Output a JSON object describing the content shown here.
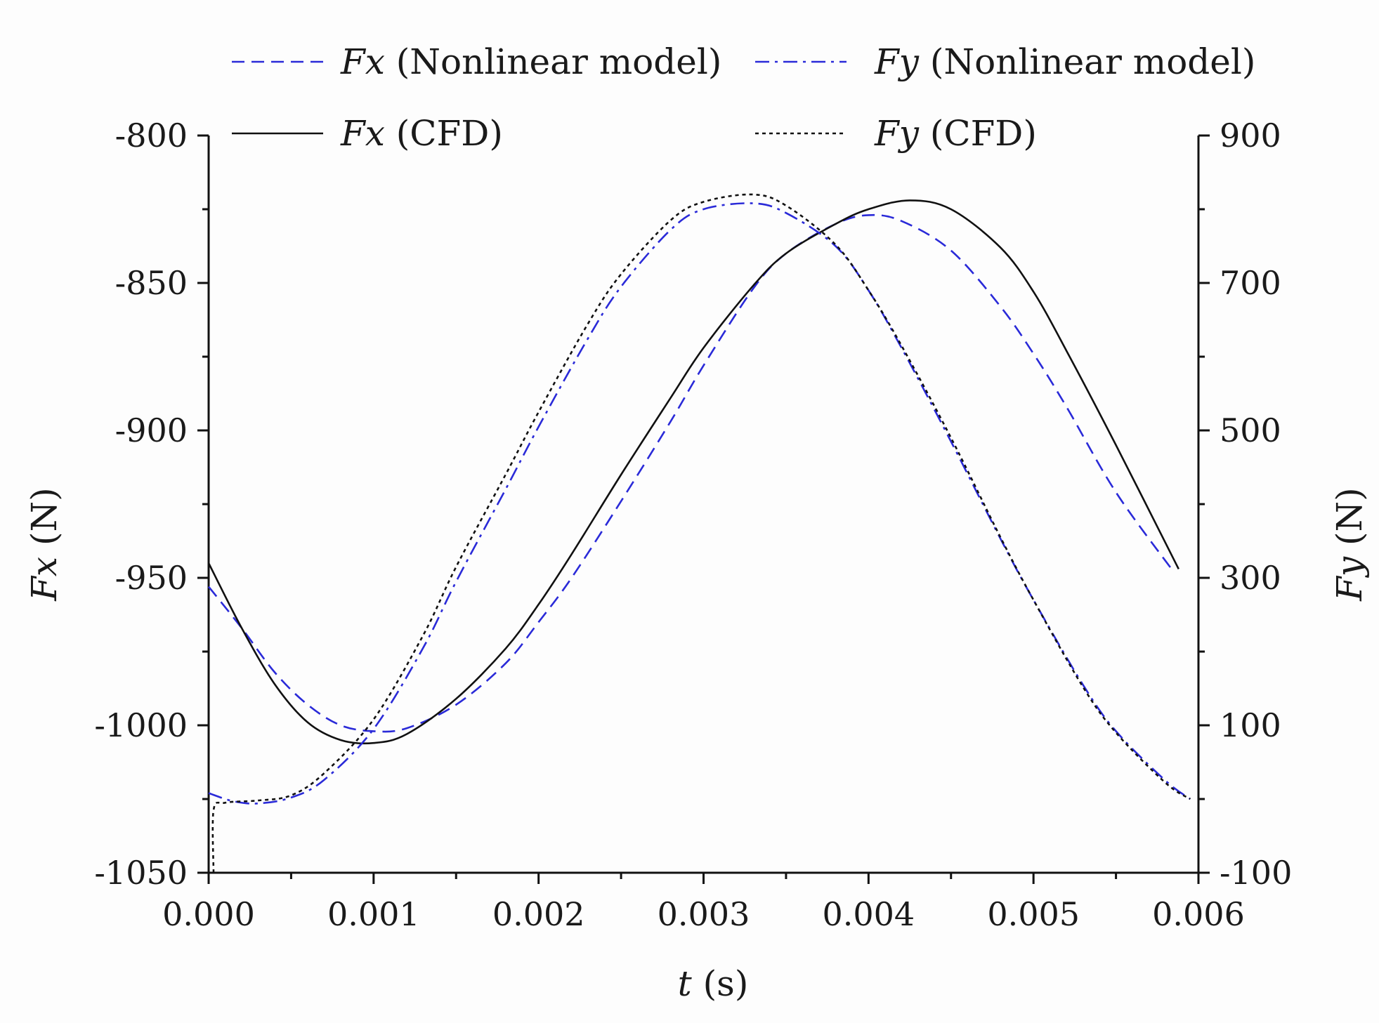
{
  "chart_data": {
    "type": "line",
    "x_axis": {
      "label_var": "t",
      "label_unit": "(s)",
      "range": [
        0,
        0.006
      ],
      "ticks": [
        "0.000",
        "0.001",
        "0.002",
        "0.003",
        "0.004",
        "0.005",
        "0.006"
      ],
      "tick_values": [
        0,
        0.001,
        0.002,
        0.003,
        0.004,
        0.005,
        0.006
      ]
    },
    "y_left": {
      "label_var": "Fx",
      "label_unit": "(N)",
      "range": [
        -1050,
        -800
      ],
      "ticks": [
        "-800",
        "-850",
        "-900",
        "-950",
        "-1000",
        "-1050"
      ],
      "tick_values": [
        -800,
        -850,
        -900,
        -950,
        -1000,
        -1050
      ]
    },
    "y_right": {
      "label_var": "Fy",
      "label_unit": "(N)",
      "range": [
        -100,
        900
      ],
      "ticks": [
        "900",
        "700",
        "500",
        "300",
        "100",
        "-100"
      ],
      "tick_values": [
        900,
        700,
        500,
        300,
        100,
        -100
      ]
    },
    "legend": {
      "position": "top",
      "entries": [
        {
          "var": "Fx",
          "desc": "(Nonlinear model)",
          "series": "fx_model"
        },
        {
          "var": "Fy",
          "desc": "(Nonlinear model)",
          "series": "fy_model"
        },
        {
          "var": "Fx",
          "desc": "(CFD)",
          "series": "fx_cfd"
        },
        {
          "var": "Fy",
          "desc": "(CFD)",
          "series": "fy_cfd"
        }
      ]
    },
    "series": [
      {
        "id": "fx_model",
        "name": "Fx (Nonlinear model)",
        "axis": "left",
        "color": "#2a2ad8",
        "style": "dashed",
        "x": [
          0,
          0.0002,
          0.0004,
          0.0006,
          0.0008,
          0.001,
          0.0012,
          0.0015,
          0.0018,
          0.002,
          0.0022,
          0.0025,
          0.0028,
          0.003,
          0.0033,
          0.0035,
          0.0038,
          0.004,
          0.0042,
          0.0045,
          0.0048,
          0.005,
          0.0052,
          0.0055,
          0.00585
        ],
        "values": [
          -953,
          -967,
          -982,
          -993,
          -1000,
          -1002,
          -1001,
          -993,
          -979,
          -965,
          -950,
          -924,
          -897,
          -878,
          -852,
          -840,
          -830,
          -827,
          -829,
          -839,
          -858,
          -874,
          -892,
          -921,
          -948
        ]
      },
      {
        "id": "fx_cfd",
        "name": "Fx (CFD)",
        "axis": "left",
        "color": "#111111",
        "style": "solid",
        "x": [
          0,
          0.0002,
          0.0004,
          0.0006,
          0.0008,
          0.001,
          0.0012,
          0.0015,
          0.0018,
          0.002,
          0.0022,
          0.0025,
          0.0028,
          0.003,
          0.0033,
          0.0035,
          0.0038,
          0.004,
          0.00425,
          0.0045,
          0.0048,
          0.005,
          0.0052,
          0.0055,
          0.00588
        ],
        "values": [
          -945,
          -967,
          -986,
          -999,
          -1005,
          -1006,
          -1003,
          -991,
          -974,
          -959,
          -942,
          -915,
          -889,
          -872,
          -851,
          -840,
          -830,
          -825,
          -822,
          -825,
          -838,
          -853,
          -873,
          -905,
          -947
        ]
      },
      {
        "id": "fy_model",
        "name": "Fy (Nonlinear model)",
        "axis": "right",
        "color": "#2a2ad8",
        "style": "dashdot",
        "x": [
          0,
          0.00015,
          0.0003,
          0.0005,
          0.0007,
          0.001,
          0.0013,
          0.0015,
          0.0018,
          0.002,
          0.0023,
          0.0025,
          0.0028,
          0.003,
          0.0033,
          0.0035,
          0.0038,
          0.004,
          0.0042,
          0.0045,
          0.0048,
          0.005,
          0.0053,
          0.0055,
          0.0058,
          0.00595
        ],
        "values": [
          8,
          -3,
          -6,
          2,
          26,
          95,
          205,
          295,
          420,
          505,
          625,
          695,
          772,
          800,
          808,
          795,
          750,
          690,
          612,
          485,
          353,
          270,
          155,
          92,
          25,
          0
        ]
      },
      {
        "id": "fy_cfd",
        "name": "Fy (CFD)",
        "axis": "right",
        "color": "#111111",
        "style": "dotted",
        "x": [
          3e-05,
          3e-05,
          0.0001,
          0.0003,
          0.0005,
          0.0007,
          0.001,
          0.0013,
          0.0015,
          0.0018,
          0.002,
          0.0023,
          0.0025,
          0.0028,
          0.003,
          0.0033,
          0.0035,
          0.0038,
          0.004,
          0.0042,
          0.0045,
          0.0048,
          0.005,
          0.0053,
          0.0055,
          0.0058,
          0.00595
        ],
        "values": [
          -100,
          -15,
          -5,
          -2,
          5,
          35,
          108,
          222,
          315,
          440,
          525,
          645,
          712,
          785,
          810,
          820,
          805,
          752,
          690,
          615,
          490,
          355,
          270,
          152,
          90,
          22,
          0
        ]
      }
    ]
  }
}
